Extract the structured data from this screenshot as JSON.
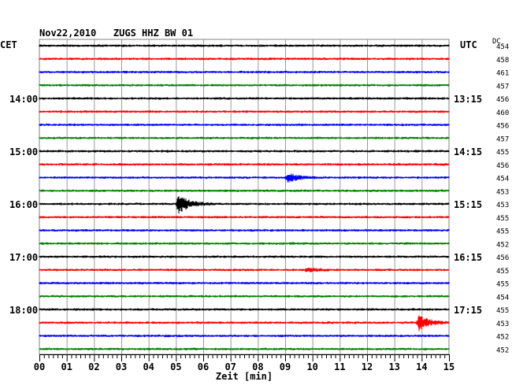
{
  "header": {
    "title": "Nov22,2010   ZUGS HHZ BW 01",
    "left_zone": "CET",
    "right_zone": "UTC",
    "dc_label": "DC"
  },
  "chart_data": {
    "type": "line",
    "title": "Nov22,2010   ZUGS HHZ BW 01",
    "xlabel": "Zeit [min]",
    "ylabel": "",
    "xlim": [
      0,
      15
    ],
    "x_tick_labels": [
      "00",
      "01",
      "02",
      "03",
      "04",
      "05",
      "06",
      "07",
      "08",
      "09",
      "10",
      "11",
      "12",
      "13",
      "14",
      "15"
    ],
    "trace_colors": [
      "#000000",
      "#ff0000",
      "#0000ff",
      "#008000"
    ],
    "rows": 24,
    "left_time_labels": [
      {
        "row": 4,
        "label": "14:00"
      },
      {
        "row": 8,
        "label": "15:00"
      },
      {
        "row": 12,
        "label": "16:00"
      },
      {
        "row": 16,
        "label": "17:00"
      },
      {
        "row": 20,
        "label": "18:00"
      }
    ],
    "right_time_labels": [
      {
        "row": 0,
        "label": "UTC"
      },
      {
        "row": 4,
        "label": "13:15"
      },
      {
        "row": 8,
        "label": "14:15"
      },
      {
        "row": 12,
        "label": "15:15"
      },
      {
        "row": 16,
        "label": "16:15"
      },
      {
        "row": 20,
        "label": "17:15"
      }
    ],
    "dc_values": [
      "454",
      "458",
      "461",
      "457",
      "456",
      "460",
      "456",
      "457",
      "455",
      "456",
      "454",
      "453",
      "453",
      "455",
      "455",
      "452",
      "456",
      "455",
      "455",
      "454",
      "455",
      "453",
      "452",
      "452"
    ],
    "events": [
      {
        "row": 12,
        "minute": 5.1,
        "amplitude": 3.0
      },
      {
        "row": 10,
        "minute": 9.1,
        "amplitude": 1.4
      },
      {
        "row": 17,
        "minute": 9.8,
        "amplitude": 0.6
      },
      {
        "row": 21,
        "minute": 13.9,
        "amplitude": 2.4
      }
    ],
    "grid": true
  }
}
